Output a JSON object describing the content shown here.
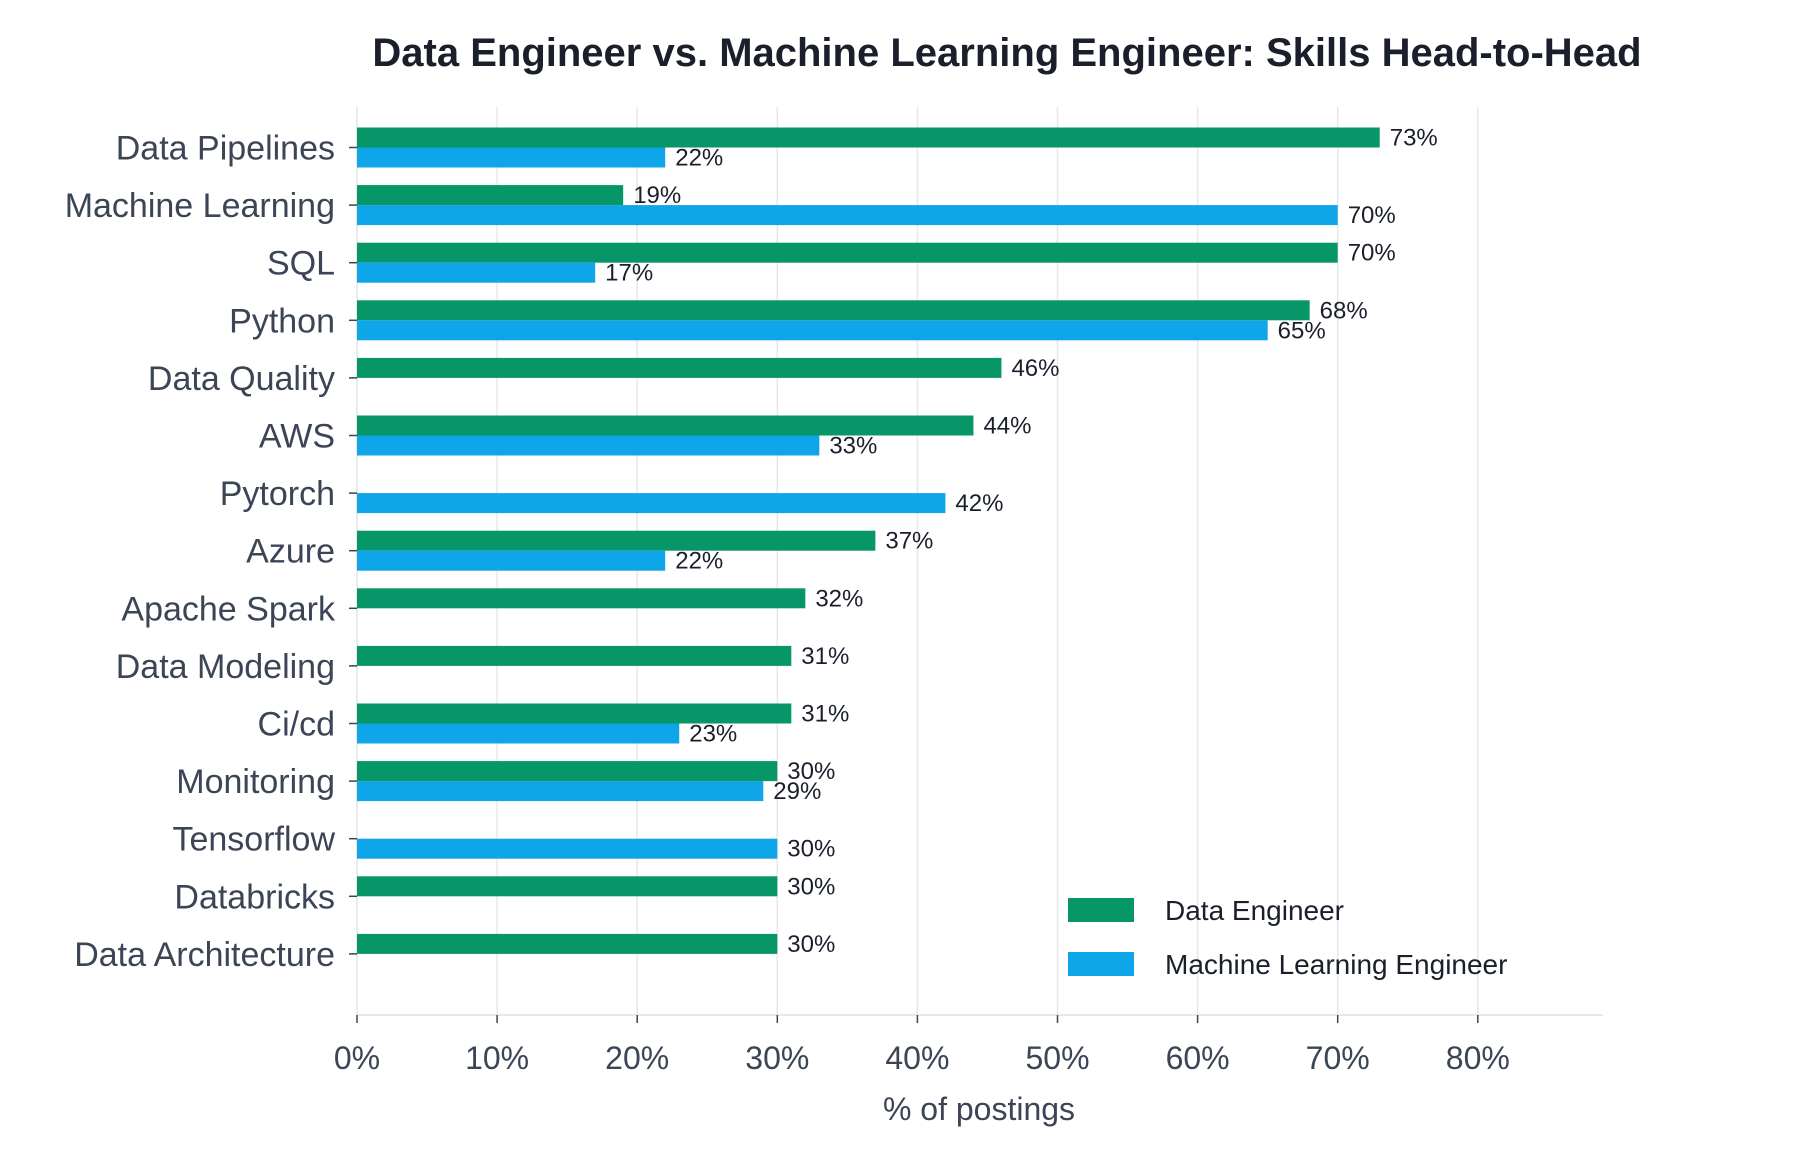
{
  "chart_data": {
    "type": "bar",
    "orientation": "horizontal",
    "title": "Data Engineer vs. Machine Learning Engineer: Skills Head-to-Head",
    "xlabel": "% of postings",
    "ylabel": "",
    "xlim": [
      0,
      89
    ],
    "xticks": [
      0,
      10,
      20,
      30,
      40,
      50,
      60,
      70,
      80
    ],
    "xtick_labels": [
      "0%",
      "10%",
      "20%",
      "30%",
      "40%",
      "50%",
      "60%",
      "70%",
      "80%"
    ],
    "grid": "vertical",
    "legend_position": "bottom-right",
    "categories": [
      "Data Pipelines",
      "Machine Learning",
      "SQL",
      "Python",
      "Data Quality",
      "AWS",
      "Pytorch",
      "Azure",
      "Apache Spark",
      "Data Modeling",
      "Ci/cd",
      "Monitoring",
      "Tensorflow",
      "Databricks",
      "Data Architecture"
    ],
    "series": [
      {
        "name": "Data Engineer",
        "color": "#069668",
        "values": [
          73,
          19,
          70,
          68,
          46,
          44,
          null,
          37,
          32,
          31,
          31,
          30,
          null,
          30,
          30
        ],
        "labels": [
          "73%",
          "19%",
          "70%",
          "68%",
          "46%",
          "44%",
          "",
          "37%",
          "32%",
          "31%",
          "31%",
          "30%",
          "",
          "30%",
          "30%"
        ]
      },
      {
        "name": "Machine Learning Engineer",
        "color": "#0ea5e9",
        "values": [
          22,
          70,
          17,
          65,
          null,
          33,
          42,
          22,
          null,
          null,
          23,
          29,
          30,
          null,
          null
        ],
        "labels": [
          "22%",
          "70%",
          "17%",
          "65%",
          "",
          "33%",
          "42%",
          "22%",
          "",
          "",
          "23%",
          "29%",
          "30%",
          "",
          ""
        ]
      }
    ]
  }
}
